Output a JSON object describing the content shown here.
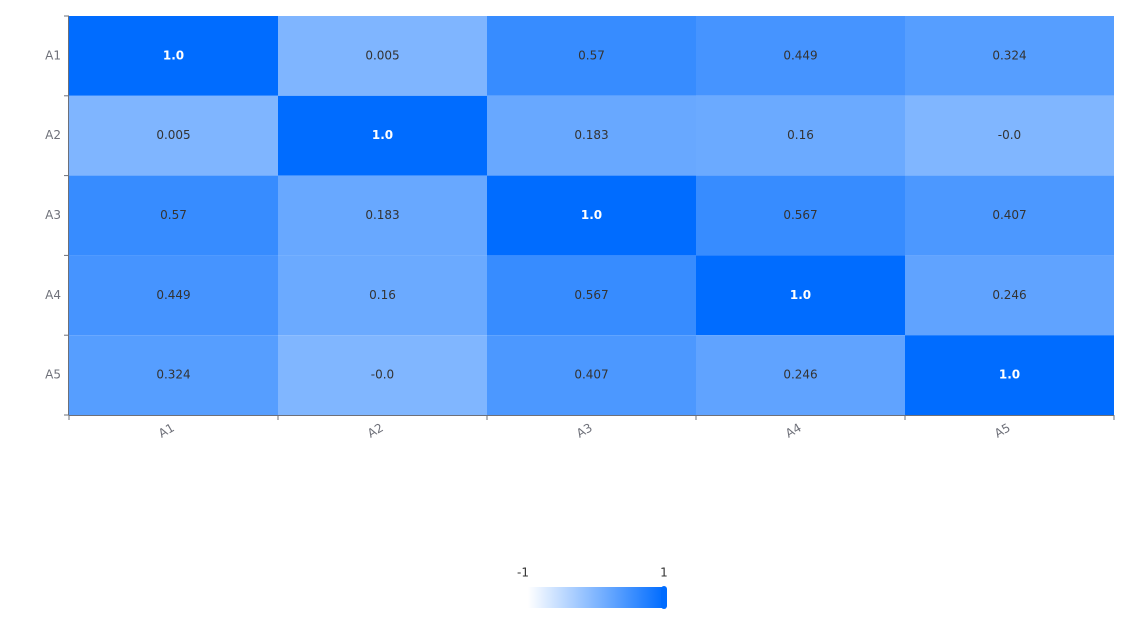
{
  "chart_data": {
    "type": "heatmap",
    "x_categories": [
      "A1",
      "A2",
      "A3",
      "A4",
      "A5"
    ],
    "y_categories": [
      "A1",
      "A2",
      "A3",
      "A4",
      "A5"
    ],
    "values": [
      [
        1.0,
        0.005,
        0.57,
        0.449,
        0.324
      ],
      [
        0.005,
        1.0,
        0.183,
        0.16,
        -0.0
      ],
      [
        0.57,
        0.183,
        1.0,
        0.567,
        0.407
      ],
      [
        0.449,
        0.16,
        0.567,
        1.0,
        0.246
      ],
      [
        0.324,
        -0.0,
        0.407,
        0.246,
        1.0
      ]
    ],
    "value_labels": [
      [
        "1.0",
        "0.005",
        "0.57",
        "0.449",
        "0.324"
      ],
      [
        "0.005",
        "1.0",
        "0.183",
        "0.16",
        "-0.0"
      ],
      [
        "0.57",
        "0.183",
        "1.0",
        "0.567",
        "0.407"
      ],
      [
        "0.449",
        "0.16",
        "0.567",
        "1.0",
        "0.246"
      ],
      [
        "0.324",
        "-0.0",
        "0.407",
        "0.246",
        "1.0"
      ]
    ],
    "visual_map": {
      "min": -1,
      "max": 1,
      "colors": [
        "#ffffff",
        "#006cff"
      ]
    }
  }
}
